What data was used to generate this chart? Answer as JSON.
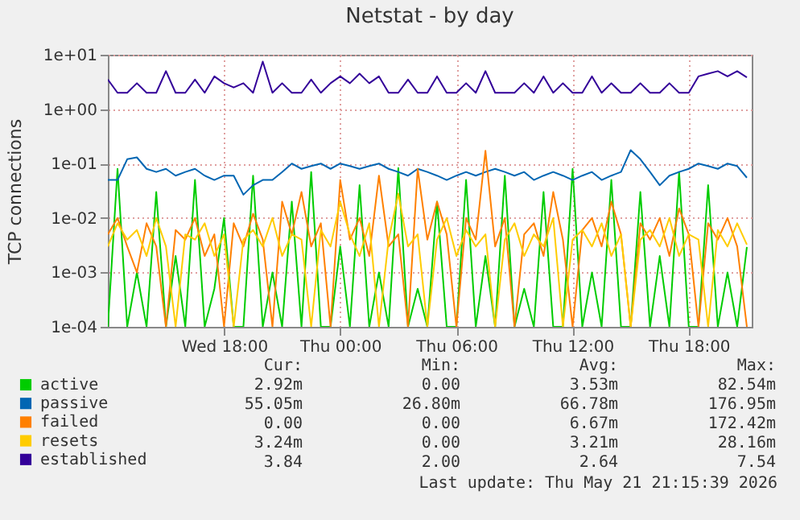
{
  "chart_data": {
    "type": "line",
    "title": "Netstat - by day",
    "ylabel": "TCP connections",
    "log": true,
    "grid": true,
    "legend": "bottom",
    "x": [
      "2026-05-20T12:00",
      "2026-05-20T12:30",
      "2026-05-20T13:00",
      "2026-05-20T13:30",
      "2026-05-20T14:00",
      "2026-05-20T14:30",
      "2026-05-20T15:00",
      "2026-05-20T15:30",
      "2026-05-20T16:00",
      "2026-05-20T16:30",
      "2026-05-20T17:00",
      "2026-05-20T17:30",
      "2026-05-20T18:00",
      "2026-05-20T18:30",
      "2026-05-20T19:00",
      "2026-05-20T19:30",
      "2026-05-20T20:00",
      "2026-05-20T20:30",
      "2026-05-20T21:00",
      "2026-05-20T21:30",
      "2026-05-20T22:00",
      "2026-05-20T22:30",
      "2026-05-20T23:00",
      "2026-05-20T23:30",
      "2026-05-21T00:00",
      "2026-05-21T00:30",
      "2026-05-21T01:00",
      "2026-05-21T01:30",
      "2026-05-21T02:00",
      "2026-05-21T02:30",
      "2026-05-21T03:00",
      "2026-05-21T03:30",
      "2026-05-21T04:00",
      "2026-05-21T04:30",
      "2026-05-21T05:00",
      "2026-05-21T05:30",
      "2026-05-21T06:00",
      "2026-05-21T06:30",
      "2026-05-21T07:00",
      "2026-05-21T07:30",
      "2026-05-21T08:00",
      "2026-05-21T08:30",
      "2026-05-21T09:00",
      "2026-05-21T09:30",
      "2026-05-21T10:00",
      "2026-05-21T10:30",
      "2026-05-21T11:00",
      "2026-05-21T11:30",
      "2026-05-21T12:00",
      "2026-05-21T12:30",
      "2026-05-21T13:00",
      "2026-05-21T13:30",
      "2026-05-21T14:00",
      "2026-05-21T14:30",
      "2026-05-21T15:00",
      "2026-05-21T15:30",
      "2026-05-21T16:00",
      "2026-05-21T16:30",
      "2026-05-21T17:00",
      "2026-05-21T17:30",
      "2026-05-21T18:00",
      "2026-05-21T18:30",
      "2026-05-21T19:00",
      "2026-05-21T19:30",
      "2026-05-21T20:00",
      "2026-05-21T20:30",
      "2026-05-21T21:00"
    ],
    "xlim": [
      "2026-05-20T12:00",
      "2026-05-21T21:15"
    ],
    "xticks": [
      {
        "value": "2026-05-20T18:00",
        "label": "Wed 18:00"
      },
      {
        "value": "2026-05-21T00:00",
        "label": "Thu 00:00"
      },
      {
        "value": "2026-05-21T06:00",
        "label": "Thu 06:00"
      },
      {
        "value": "2026-05-21T12:00",
        "label": "Thu 12:00"
      },
      {
        "value": "2026-05-21T18:00",
        "label": "Thu 18:00"
      }
    ],
    "ylim": [
      0.0001,
      10
    ],
    "yticks": [
      {
        "value": 0.0001,
        "label": "1e-04"
      },
      {
        "value": 0.001,
        "label": "1e-03"
      },
      {
        "value": 0.01,
        "label": "1e-02"
      },
      {
        "value": 0.1,
        "label": "1e-01"
      },
      {
        "value": 1,
        "label": "1e+00"
      },
      {
        "value": 10,
        "label": "1e+01"
      }
    ],
    "series": [
      {
        "name": "active",
        "color": "#00cc00",
        "values": [
          0.0001,
          0.08,
          0.0001,
          0.001,
          0.0001,
          0.03,
          0.0001,
          0.002,
          0.0001,
          0.05,
          0.0001,
          0.0005,
          0.01,
          0.0001,
          0.0001,
          0.06,
          0.0001,
          0.001,
          0.0001,
          0.02,
          0.0001,
          0.07,
          0.0001,
          0.0001,
          0.003,
          0.0001,
          0.04,
          0.0001,
          0.001,
          0.0001,
          0.0825,
          0.0001,
          0.0005,
          0.0001,
          0.02,
          0.0001,
          0.0001,
          0.05,
          0.0001,
          0.002,
          0.0001,
          0.06,
          0.0001,
          0.0005,
          0.0001,
          0.03,
          0.0001,
          0.0001,
          0.08,
          0.0001,
          0.001,
          0.0001,
          0.05,
          0.0001,
          0.0001,
          0.03,
          0.0001,
          0.002,
          0.0001,
          0.07,
          0.0001,
          0.0001,
          0.04,
          0.0001,
          0.001,
          0.0001,
          0.00292
        ]
      },
      {
        "name": "passive",
        "color": "#0066b3",
        "values": [
          0.05,
          0.05,
          0.12,
          0.13,
          0.08,
          0.07,
          0.08,
          0.06,
          0.07,
          0.08,
          0.06,
          0.05,
          0.06,
          0.06,
          0.0268,
          0.04,
          0.05,
          0.05,
          0.07,
          0.1,
          0.08,
          0.09,
          0.1,
          0.08,
          0.1,
          0.09,
          0.08,
          0.09,
          0.1,
          0.08,
          0.07,
          0.06,
          0.08,
          0.07,
          0.06,
          0.05,
          0.06,
          0.07,
          0.06,
          0.07,
          0.08,
          0.07,
          0.06,
          0.07,
          0.05,
          0.06,
          0.07,
          0.06,
          0.05,
          0.06,
          0.07,
          0.05,
          0.06,
          0.07,
          0.177,
          0.12,
          0.07,
          0.04,
          0.06,
          0.07,
          0.08,
          0.1,
          0.09,
          0.08,
          0.1,
          0.09,
          0.055
        ]
      },
      {
        "name": "failed",
        "color": "#ff8000",
        "values": [
          0.005,
          0.01,
          0.003,
          0.001,
          0.008,
          0.003,
          0.0001,
          0.006,
          0.004,
          0.01,
          0.002,
          0.005,
          0.0001,
          0.008,
          0.003,
          0.012,
          0.004,
          0.0001,
          0.02,
          0.005,
          0.03,
          0.003,
          0.008,
          0.0001,
          0.05,
          0.004,
          0.01,
          0.002,
          0.06,
          0.003,
          0.005,
          0.0001,
          0.08,
          0.004,
          0.02,
          0.005,
          0.0001,
          0.01,
          0.004,
          0.172,
          0.003,
          0.01,
          0.0001,
          0.005,
          0.008,
          0.002,
          0.03,
          0.004,
          0.0001,
          0.006,
          0.01,
          0.003,
          0.02,
          0.005,
          0.0001,
          0.008,
          0.004,
          0.01,
          0.002,
          0.015,
          0.005,
          0.0001,
          0.008,
          0.004,
          0.01,
          0.003,
          0.0001
        ]
      },
      {
        "name": "resets",
        "color": "#ffcc00",
        "values": [
          0.003,
          0.008,
          0.004,
          0.006,
          0.002,
          0.01,
          0.003,
          0.0001,
          0.005,
          0.004,
          0.008,
          0.002,
          0.005,
          0.0001,
          0.004,
          0.006,
          0.003,
          0.01,
          0.002,
          0.005,
          0.004,
          0.0001,
          0.006,
          0.003,
          0.02,
          0.005,
          0.002,
          0.008,
          0.0001,
          0.004,
          0.028,
          0.003,
          0.005,
          0.0001,
          0.004,
          0.01,
          0.002,
          0.006,
          0.003,
          0.005,
          0.0001,
          0.004,
          0.008,
          0.002,
          0.005,
          0.003,
          0.01,
          0.0001,
          0.004,
          0.006,
          0.003,
          0.008,
          0.002,
          0.005,
          0.0001,
          0.004,
          0.006,
          0.003,
          0.01,
          0.002,
          0.005,
          0.004,
          0.0001,
          0.006,
          0.003,
          0.008,
          0.00324
        ]
      },
      {
        "name": "established",
        "color": "#330099",
        "values": [
          3.5,
          2,
          2,
          3,
          2,
          2,
          5,
          2,
          2,
          3.5,
          2,
          4,
          3,
          2.5,
          3,
          2,
          7.5,
          2,
          3,
          2,
          2,
          3.5,
          2,
          3,
          4,
          3,
          4.5,
          3,
          4,
          2,
          2,
          3.5,
          2,
          2,
          4,
          2,
          2,
          3,
          2,
          5,
          2,
          2,
          2,
          3,
          2,
          4,
          2,
          3,
          2,
          2,
          4,
          2,
          3,
          2,
          2,
          3,
          2,
          2,
          3,
          2,
          2,
          4,
          4.5,
          5,
          4,
          5,
          3.84
        ]
      }
    ],
    "annotations": [
      "Cur:",
      "Min:",
      "Avg:",
      "Max:",
      "2.92m",
      "0.00",
      "3.53m",
      "82.54m",
      "55.05m",
      "26.80m",
      "66.78m",
      "176.95m",
      "0.00",
      "0.00",
      "6.67m",
      "172.42m",
      "3.24m",
      "0.00",
      "3.21m",
      "28.16m",
      "3.84",
      "2.00",
      "2.64",
      "7.54",
      "Last update: Thu May 21 21:15:39 2026"
    ]
  }
}
